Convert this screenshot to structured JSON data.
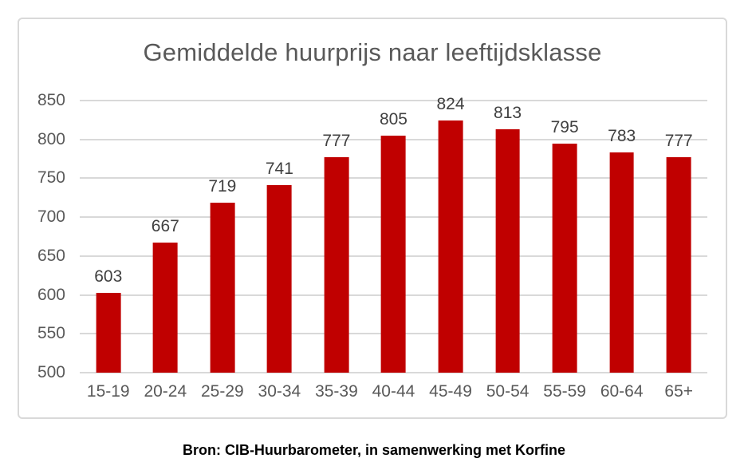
{
  "chart_data": {
    "type": "bar",
    "title": "Gemiddelde huurprijs naar leeftijdsklasse",
    "categories": [
      "15-19",
      "20-24",
      "25-29",
      "30-34",
      "35-39",
      "40-44",
      "45-49",
      "50-54",
      "55-59",
      "60-64",
      "65+"
    ],
    "values": [
      603,
      667,
      719,
      741,
      777,
      805,
      824,
      813,
      795,
      783,
      777
    ],
    "xlabel": "",
    "ylabel": "",
    "ylim": [
      500,
      850
    ],
    "y_ticks": [
      500,
      550,
      600,
      650,
      700,
      750,
      800,
      850
    ],
    "grid": true,
    "legend": "none",
    "colors": {
      "bar": "#c00000",
      "gridline": "#d9d9d9",
      "frame_border": "#d9d9d9",
      "title_text": "#595959",
      "axis_tick_text": "#595959",
      "data_label_text": "#404040",
      "caption_text": "#000000"
    }
  },
  "caption": "Bron: CIB-Huurbarometer, in samenwerking met Korfine"
}
